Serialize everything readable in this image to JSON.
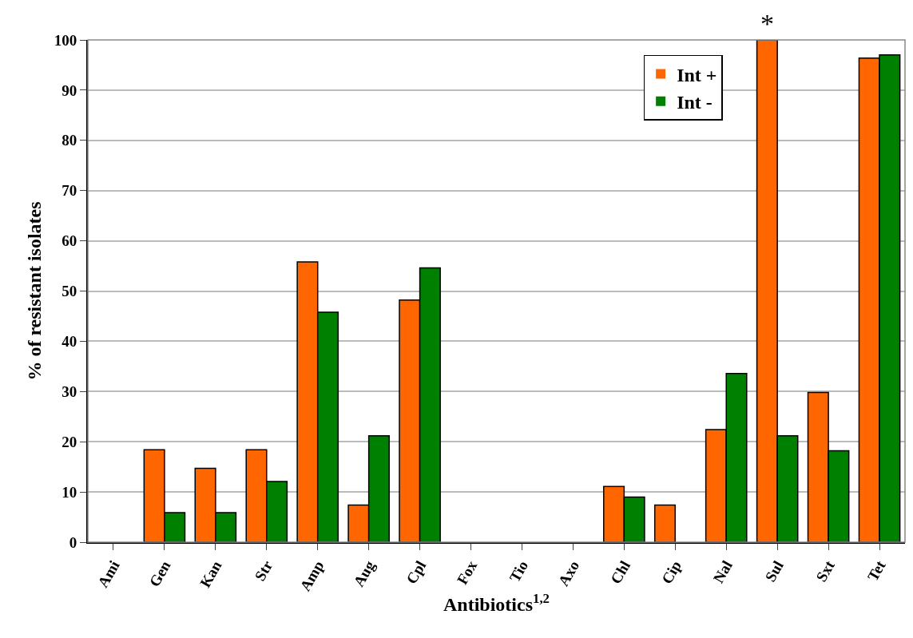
{
  "chart_data": {
    "type": "bar",
    "xlabel": "Antibiotics$^{1,2}$",
    "ylabel": "% of resistant isolates",
    "categories": [
      "Ami",
      "Gen",
      "Kan",
      "Str",
      "Amp",
      "Aug",
      "Cpl",
      "Fox",
      "Tio",
      "Axo",
      "Chl",
      "Cip",
      "Nal",
      "Sul",
      "Sxt",
      "Tet"
    ],
    "series": [
      {
        "name": "Int +",
        "color": "#ff6600",
        "values": [
          0,
          18.4,
          14.7,
          18.4,
          55.8,
          7.4,
          48.2,
          0,
          0,
          0,
          11.1,
          7.4,
          22.4,
          100,
          29.8,
          96.4
        ]
      },
      {
        "name": "Int -",
        "color": "#008000",
        "values": [
          0,
          5.9,
          5.9,
          12.1,
          45.8,
          21.2,
          54.6,
          0,
          0,
          0,
          9.0,
          0,
          33.6,
          21.2,
          18.2,
          97.0
        ]
      }
    ],
    "ylim": [
      0,
      100
    ],
    "yticks": [
      0,
      10,
      20,
      30,
      40,
      50,
      60,
      70,
      80,
      90,
      100
    ],
    "grid": "y",
    "legend": "top right",
    "annotations": [
      {
        "text": "*",
        "x": "Sul",
        "y": 100
      }
    ]
  }
}
